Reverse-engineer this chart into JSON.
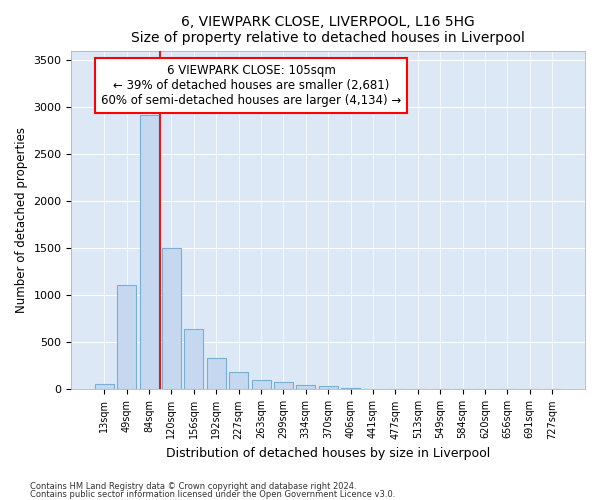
{
  "title": "6, VIEWPARK CLOSE, LIVERPOOL, L16 5HG",
  "subtitle": "Size of property relative to detached houses in Liverpool",
  "xlabel": "Distribution of detached houses by size in Liverpool",
  "ylabel": "Number of detached properties",
  "bar_color": "#c5d8f0",
  "bar_edge_color": "#7aafd4",
  "annotation_box_text": "6 VIEWPARK CLOSE: 105sqm\n← 39% of detached houses are smaller (2,681)\n60% of semi-detached houses are larger (4,134) →",
  "vline_color": "#cc2222",
  "categories": [
    "13sqm",
    "49sqm",
    "84sqm",
    "120sqm",
    "156sqm",
    "192sqm",
    "227sqm",
    "263sqm",
    "299sqm",
    "334sqm",
    "370sqm",
    "406sqm",
    "441sqm",
    "477sqm",
    "513sqm",
    "549sqm",
    "584sqm",
    "620sqm",
    "656sqm",
    "691sqm",
    "727sqm"
  ],
  "values": [
    55,
    1105,
    2920,
    1505,
    640,
    330,
    190,
    100,
    75,
    50,
    35,
    20,
    8,
    3,
    2,
    1,
    1,
    0,
    0,
    0,
    0
  ],
  "ylim": [
    0,
    3600
  ],
  "yticks": [
    0,
    500,
    1000,
    1500,
    2000,
    2500,
    3000,
    3500
  ],
  "footer1": "Contains HM Land Registry data © Crown copyright and database right 2024.",
  "footer2": "Contains public sector information licensed under the Open Government Licence v3.0.",
  "fig_bg_color": "#ffffff",
  "plot_bg_color": "#dce8f5"
}
